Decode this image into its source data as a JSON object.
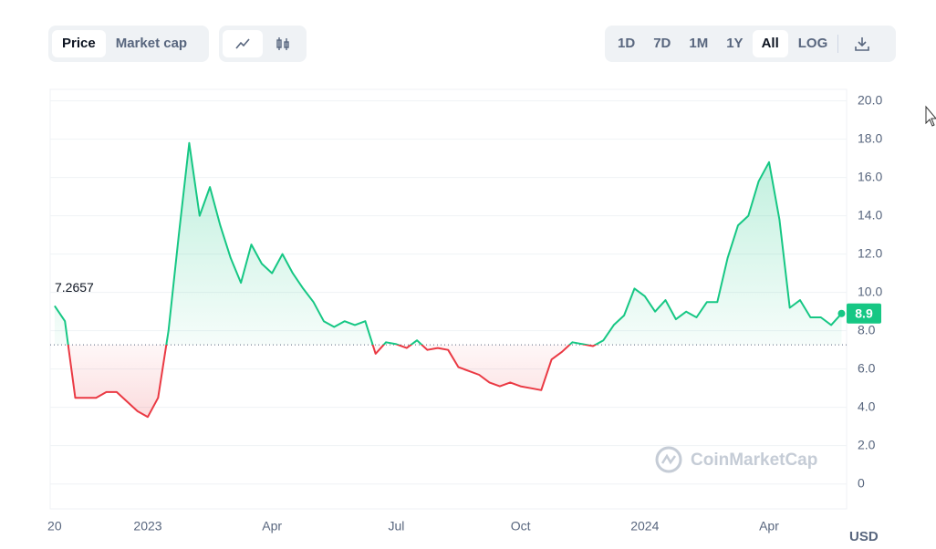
{
  "controls": {
    "views": [
      "Price",
      "Market cap"
    ],
    "active_view": "Price",
    "ranges": [
      "1D",
      "7D",
      "1M",
      "1Y",
      "All"
    ],
    "active_range": "All",
    "log": "LOG"
  },
  "chart_data": {
    "type": "line",
    "categories": [
      "20",
      null,
      null,
      null,
      null,
      null,
      null,
      null,
      null,
      "2023",
      null,
      null,
      null,
      null,
      null,
      null,
      null,
      null,
      null,
      null,
      null,
      "Apr",
      null,
      null,
      null,
      null,
      null,
      null,
      null,
      null,
      null,
      null,
      null,
      "Jul",
      null,
      null,
      null,
      null,
      null,
      null,
      null,
      null,
      null,
      null,
      null,
      "Oct",
      null,
      null,
      null,
      null,
      null,
      null,
      null,
      null,
      null,
      null,
      null,
      "2024",
      null,
      null,
      null,
      null,
      null,
      null,
      null,
      null,
      null,
      null,
      null,
      "Apr",
      null,
      null,
      null,
      null,
      null,
      null,
      null
    ],
    "values": [
      9.3,
      8.5,
      4.5,
      4.5,
      4.5,
      4.8,
      4.8,
      4.3,
      3.8,
      3.5,
      4.5,
      8.0,
      13.0,
      17.8,
      14.0,
      15.5,
      13.5,
      11.8,
      10.5,
      12.5,
      11.5,
      11.0,
      12.0,
      11.0,
      10.2,
      9.5,
      8.5,
      8.2,
      8.5,
      8.3,
      8.5,
      6.8,
      7.4,
      7.3,
      7.1,
      7.5,
      7.0,
      7.1,
      7.0,
      6.1,
      5.9,
      5.7,
      5.3,
      5.1,
      5.3,
      5.1,
      5.0,
      4.9,
      6.5,
      6.9,
      7.4,
      7.3,
      7.2,
      7.5,
      8.3,
      8.8,
      10.2,
      9.8,
      9.0,
      9.6,
      8.6,
      9.0,
      8.7,
      9.5,
      9.5,
      11.8,
      13.5,
      14.0,
      15.8,
      16.8,
      13.8,
      9.2,
      9.6,
      8.7,
      8.7,
      8.3,
      8.9
    ],
    "color_up": "#16c784",
    "color_down": "#ea3943",
    "reference_value": 7.2657,
    "current_value": 8.9,
    "ylim": [
      -1.3,
      20.6
    ],
    "yticks": [
      0,
      {
        "value": 2,
        "label": "2.0"
      },
      {
        "value": 4,
        "label": "4.0"
      },
      {
        "value": 6,
        "label": "6.0"
      },
      {
        "value": 8,
        "label": "8.0"
      },
      {
        "value": 10,
        "label": "10.0"
      },
      {
        "value": 12,
        "label": "12.0"
      },
      {
        "value": 14,
        "label": "14.0"
      },
      {
        "value": 16,
        "label": "16.0"
      },
      {
        "value": 18,
        "label": "18.0"
      },
      {
        "value": 20,
        "label": "20.0"
      }
    ],
    "grid": true,
    "currency": "USD",
    "watermark": "CoinMarketCap"
  }
}
